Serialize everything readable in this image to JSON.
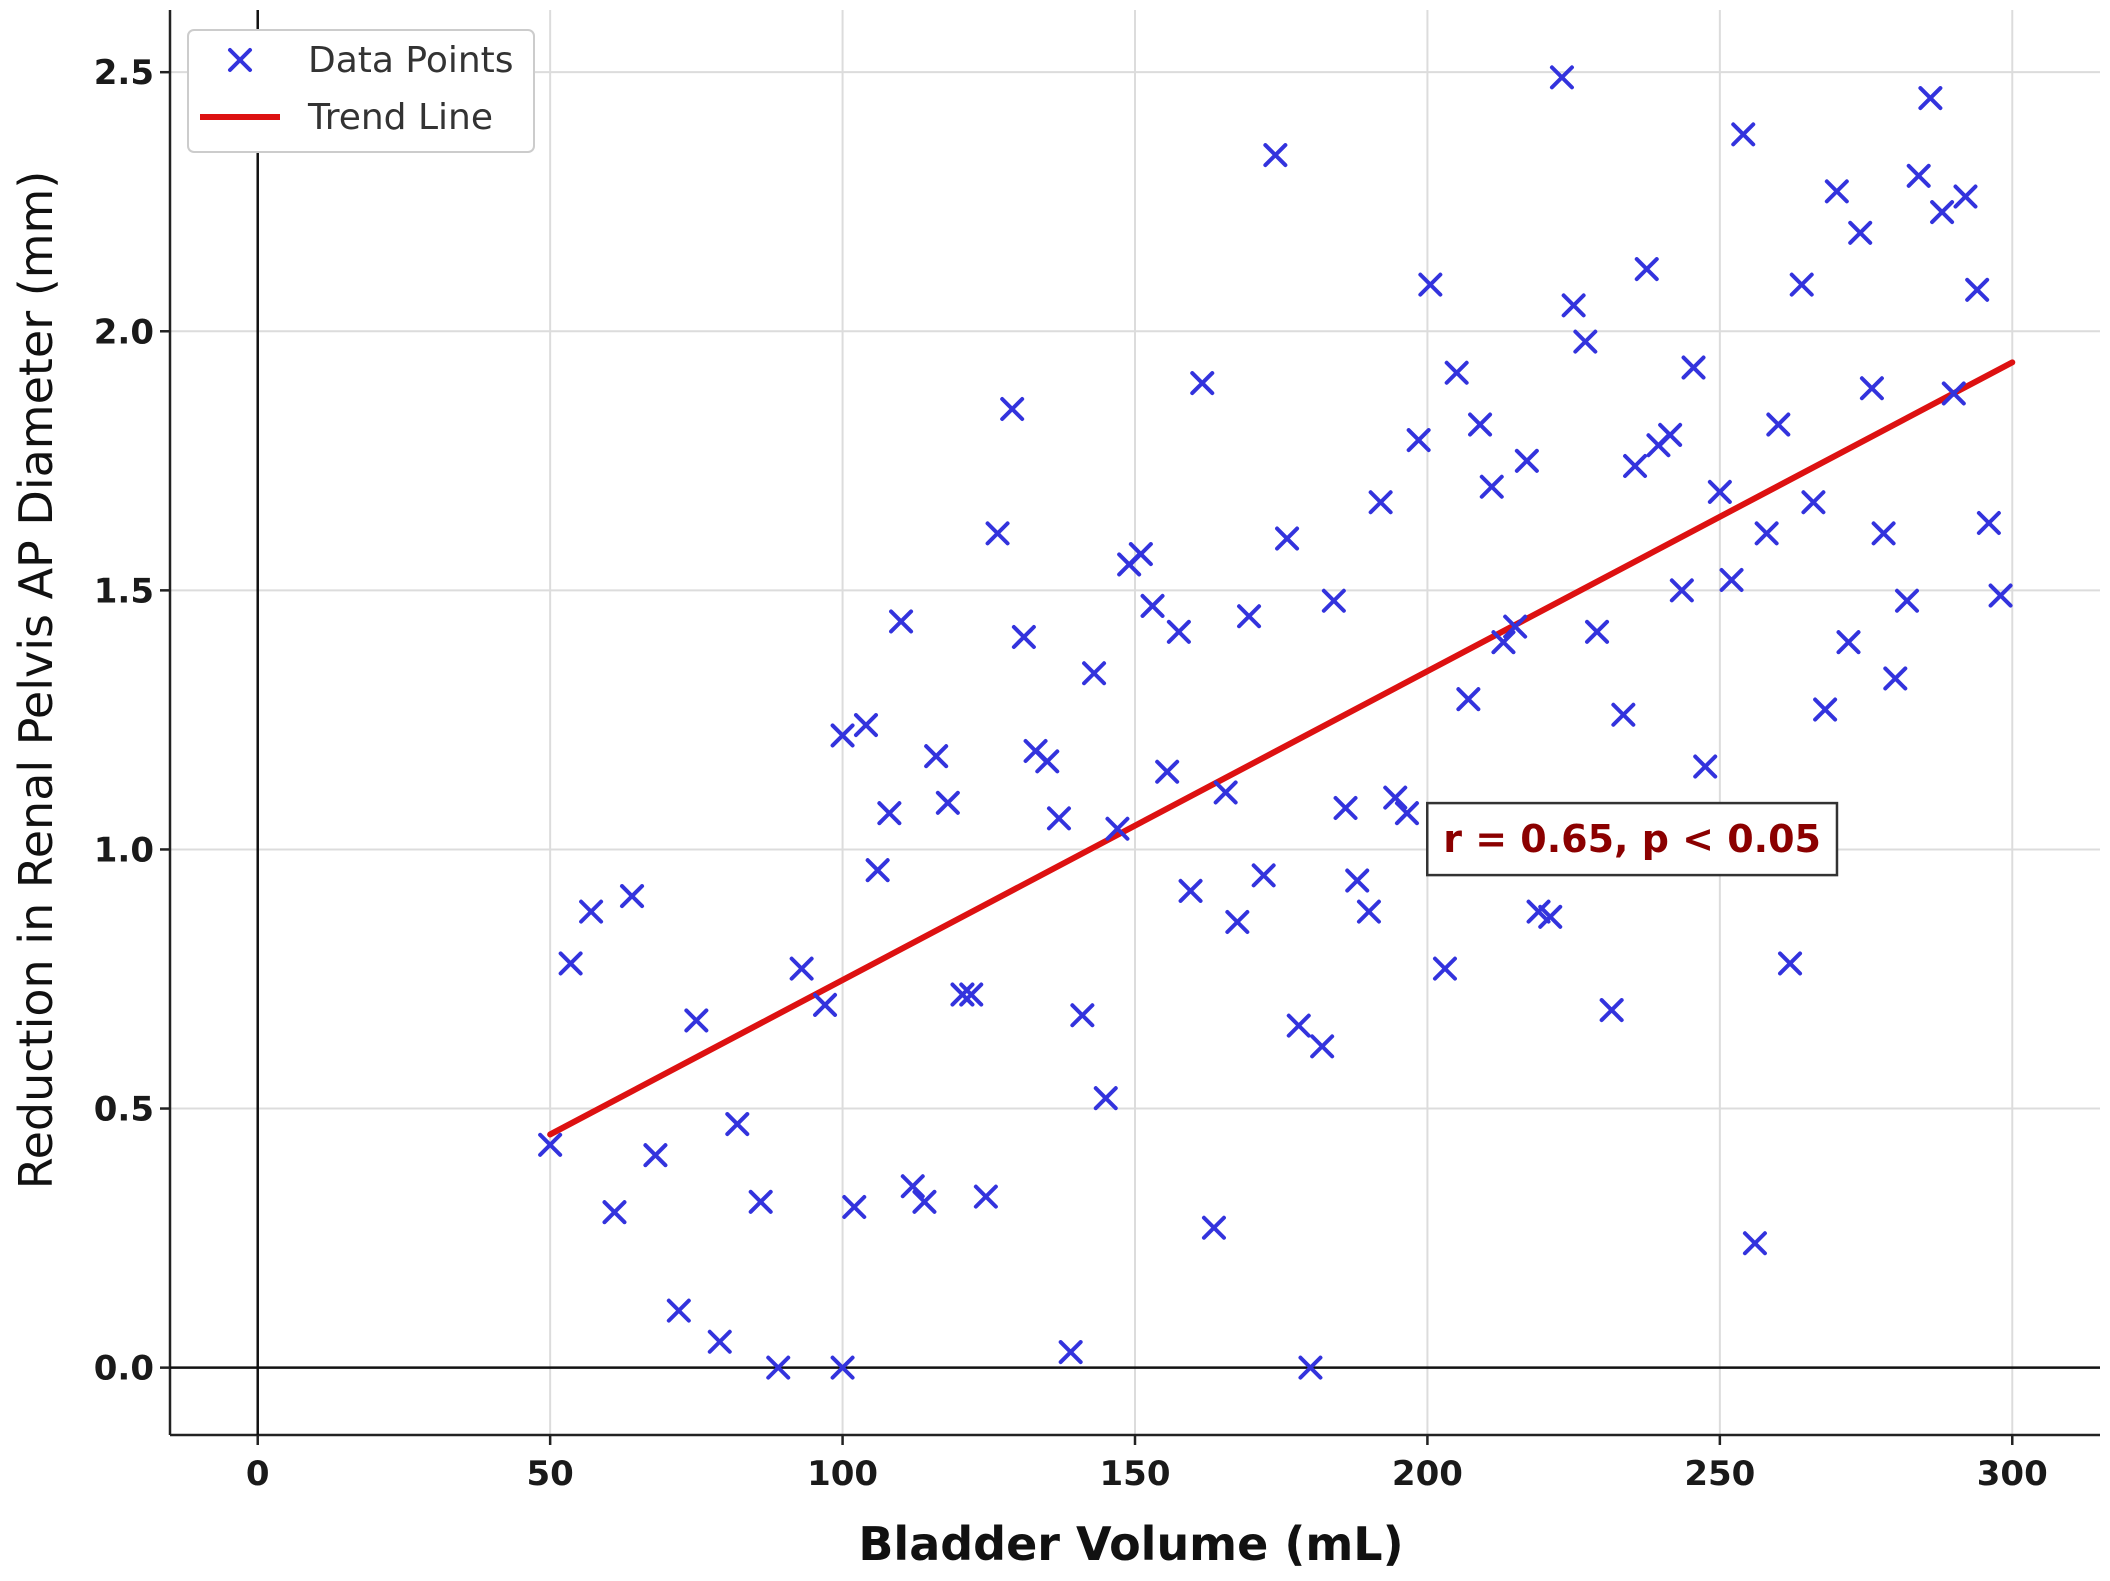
{
  "chart_data": {
    "type": "scatter",
    "xlabel": "Bladder Volume (mL)",
    "ylabel": "Reduction in Renal Pelvis AP Diameter (mm)",
    "xlim": [
      -15,
      315
    ],
    "ylim": [
      -0.13,
      2.62
    ],
    "x_ticks": [
      0,
      50,
      100,
      150,
      200,
      250,
      300
    ],
    "x_tick_labels": [
      "0",
      "50",
      "100",
      "150",
      "200",
      "250",
      "300"
    ],
    "y_ticks": [
      0.0,
      0.5,
      1.0,
      1.5,
      2.0,
      2.5
    ],
    "y_tick_labels": [
      "0.0",
      "0.5",
      "1.0",
      "1.5",
      "2.0",
      "2.5"
    ],
    "grid": true,
    "legend_position": "top-left",
    "series": [
      {
        "name": "Data Points",
        "marker": "x",
        "color": "#3333dd",
        "points": [
          [
            50,
            0.43
          ],
          [
            53.5,
            0.78
          ],
          [
            57,
            0.88
          ],
          [
            61,
            0.3
          ],
          [
            64,
            0.91
          ],
          [
            68,
            0.41
          ],
          [
            72,
            0.11
          ],
          [
            75,
            0.67
          ],
          [
            79,
            0.05
          ],
          [
            82,
            0.47
          ],
          [
            86,
            0.32
          ],
          [
            89,
            0.0
          ],
          [
            93,
            0.77
          ],
          [
            97,
            0.7
          ],
          [
            100,
            1.22
          ],
          [
            100,
            0.0
          ],
          [
            102,
            0.31
          ],
          [
            104,
            1.24
          ],
          [
            106,
            0.96
          ],
          [
            108,
            1.07
          ],
          [
            110,
            1.44
          ],
          [
            112,
            0.35
          ],
          [
            114,
            0.32
          ],
          [
            116,
            1.18
          ],
          [
            118,
            1.09
          ],
          [
            120.5,
            0.72
          ],
          [
            122,
            0.72
          ],
          [
            124.5,
            0.33
          ],
          [
            126.5,
            1.61
          ],
          [
            129,
            1.85
          ],
          [
            131,
            1.41
          ],
          [
            133,
            1.19
          ],
          [
            135,
            1.17
          ],
          [
            137,
            1.06
          ],
          [
            139,
            0.03
          ],
          [
            141,
            0.68
          ],
          [
            143,
            1.34
          ],
          [
            145,
            0.52
          ],
          [
            147,
            1.04
          ],
          [
            149,
            1.55
          ],
          [
            151,
            1.57
          ],
          [
            153,
            1.47
          ],
          [
            155.5,
            1.15
          ],
          [
            157.5,
            1.42
          ],
          [
            159.5,
            0.92
          ],
          [
            161.5,
            1.9
          ],
          [
            163.5,
            0.27
          ],
          [
            165.5,
            1.11
          ],
          [
            167.5,
            0.86
          ],
          [
            169.5,
            1.45
          ],
          [
            172,
            0.95
          ],
          [
            174,
            2.34
          ],
          [
            176,
            1.6
          ],
          [
            178,
            0.66
          ],
          [
            180,
            0.0
          ],
          [
            182,
            0.62
          ],
          [
            184,
            1.48
          ],
          [
            186,
            1.08
          ],
          [
            188,
            0.94
          ],
          [
            190,
            0.88
          ],
          [
            192,
            1.67
          ],
          [
            194.5,
            1.1
          ],
          [
            196.5,
            1.07
          ],
          [
            198.5,
            1.79
          ],
          [
            200.5,
            2.09
          ],
          [
            203,
            0.77
          ],
          [
            205,
            1.92
          ],
          [
            207,
            1.29
          ],
          [
            209,
            1.82
          ],
          [
            211,
            1.7
          ],
          [
            213,
            1.4
          ],
          [
            215,
            1.43
          ],
          [
            217,
            1.75
          ],
          [
            219,
            0.88
          ],
          [
            221,
            0.87
          ],
          [
            223,
            2.49
          ],
          [
            225,
            2.05
          ],
          [
            227,
            1.98
          ],
          [
            229,
            1.42
          ],
          [
            231.5,
            0.69
          ],
          [
            233.5,
            1.26
          ],
          [
            235.5,
            1.74
          ],
          [
            237.5,
            2.12
          ],
          [
            239.5,
            1.78
          ],
          [
            241.5,
            1.8
          ],
          [
            243.5,
            1.5
          ],
          [
            245.5,
            1.93
          ],
          [
            247.5,
            1.16
          ],
          [
            250,
            1.69
          ],
          [
            252,
            1.52
          ],
          [
            254,
            2.38
          ],
          [
            256,
            0.24
          ],
          [
            258,
            1.61
          ],
          [
            260,
            1.82
          ],
          [
            262,
            0.78
          ],
          [
            264,
            2.09
          ],
          [
            266,
            1.67
          ],
          [
            268,
            1.27
          ],
          [
            270,
            2.27
          ],
          [
            272,
            1.4
          ],
          [
            274,
            2.19
          ],
          [
            276,
            1.89
          ],
          [
            278,
            1.61
          ],
          [
            280,
            1.33
          ],
          [
            282,
            1.48
          ],
          [
            284,
            2.3
          ],
          [
            286,
            2.45
          ],
          [
            288,
            2.23
          ],
          [
            290,
            1.88
          ],
          [
            292,
            2.26
          ],
          [
            294,
            2.08
          ],
          [
            296,
            1.63
          ],
          [
            298,
            1.49
          ]
        ]
      },
      {
        "name": "Trend Line",
        "marker": "line",
        "color": "#dd1111",
        "x": [
          50,
          300
        ],
        "y": [
          0.45,
          1.94
        ]
      }
    ],
    "annotation": {
      "text": "r = 0.65, p < 0.05",
      "x": 235,
      "y": 1.02,
      "color": "#8b0000"
    }
  }
}
